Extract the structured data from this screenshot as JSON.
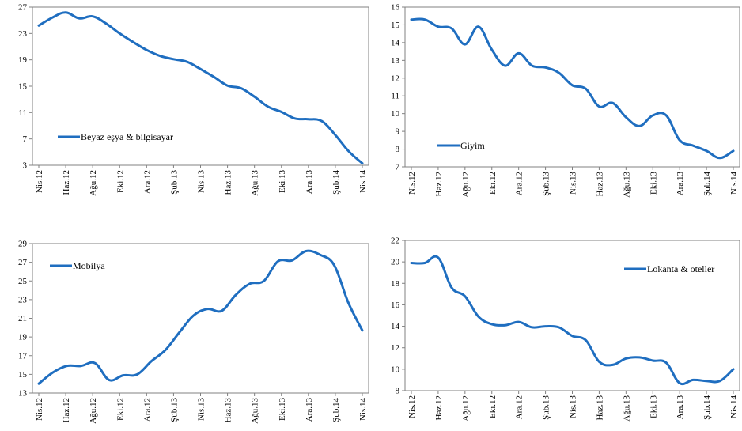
{
  "chart_data": [
    {
      "type": "line",
      "title": "",
      "xlabel": "",
      "ylabel": "",
      "x_tick_labels": [
        "Nis.12",
        "Haz.12",
        "Ağu.12",
        "Eki.12",
        "Ara.12",
        "Şub.13",
        "Nis.13",
        "Haz.13",
        "Ağu.13",
        "Eki.13",
        "Ara.13",
        "Şub.14",
        "Nis.14"
      ],
      "ylim": [
        3,
        27
      ],
      "yticks": [
        3,
        7,
        11,
        15,
        19,
        23,
        27
      ],
      "grid": false,
      "legend_position": "lower-left",
      "color": "#1F6EC0",
      "series": [
        {
          "name": "Beyaz eşya & bilgisayar",
          "values": [
            24.2,
            25.4,
            26.2,
            25.3,
            25.6,
            24.5,
            23.0,
            21.7,
            20.5,
            19.6,
            19.1,
            18.7,
            17.6,
            16.4,
            15.1,
            14.7,
            13.4,
            11.9,
            11.1,
            10.1,
            10.0,
            9.7,
            7.6,
            5.1,
            3.3
          ]
        }
      ]
    },
    {
      "type": "line",
      "title": "",
      "xlabel": "",
      "ylabel": "",
      "x_tick_labels": [
        "Nis.12",
        "Haz.12",
        "Ağu.12",
        "Eki.12",
        "Ara.12",
        "Şub.13",
        "Nis.13",
        "Haz.13",
        "Ağu.13",
        "Eki.13",
        "Ara.13",
        "Şub.14",
        "Nis.14"
      ],
      "ylim": [
        7,
        16
      ],
      "yticks": [
        7,
        8,
        9,
        10,
        11,
        12,
        13,
        14,
        15,
        16
      ],
      "grid": false,
      "legend_position": "lower-left",
      "color": "#1F6EC0",
      "series": [
        {
          "name": "Giyim",
          "values": [
            15.3,
            15.3,
            14.9,
            14.8,
            13.9,
            14.9,
            13.6,
            12.7,
            13.4,
            12.7,
            12.6,
            12.3,
            11.6,
            11.4,
            10.4,
            10.6,
            9.8,
            9.3,
            9.9,
            9.9,
            8.5,
            8.2,
            7.9,
            7.5,
            7.9
          ]
        }
      ]
    },
    {
      "type": "line",
      "title": "",
      "xlabel": "",
      "ylabel": "",
      "x_tick_labels": [
        "Nis.12",
        "Haz.12",
        "Ağu.12",
        "Eki.12",
        "Ara.12",
        "Şub.13",
        "Nis.13",
        "Haz.13",
        "Ağu.13",
        "Eki.13",
        "Ara.13",
        "Şub.14",
        "Nis.14"
      ],
      "ylim": [
        13,
        29
      ],
      "yticks": [
        13,
        15,
        17,
        19,
        21,
        23,
        25,
        27,
        29
      ],
      "grid": false,
      "legend_position": "top-left",
      "color": "#1F6EC0",
      "series": [
        {
          "name": "Mobilya",
          "values": [
            14.0,
            15.2,
            15.9,
            15.9,
            16.2,
            14.4,
            14.9,
            15.0,
            16.4,
            17.6,
            19.5,
            21.3,
            22.0,
            21.8,
            23.5,
            24.7,
            25.0,
            27.1,
            27.2,
            28.2,
            27.8,
            26.7,
            22.7,
            19.7
          ]
        }
      ]
    },
    {
      "type": "line",
      "title": "",
      "xlabel": "",
      "ylabel": "",
      "x_tick_labels": [
        "Nis.12",
        "Haz.12",
        "Ağu.12",
        "Eki.12",
        "Ara.12",
        "Şub.13",
        "Nis.13",
        "Haz.13",
        "Ağu.13",
        "Eki.13",
        "Ara.13",
        "Şub.14",
        "Nis.14"
      ],
      "ylim": [
        8,
        22
      ],
      "yticks": [
        8,
        10,
        12,
        14,
        16,
        18,
        20,
        22
      ],
      "grid": false,
      "legend_position": "top-right",
      "color": "#1F6EC0",
      "series": [
        {
          "name": "Lokanta & oteller",
          "values": [
            19.9,
            19.9,
            20.4,
            17.6,
            16.8,
            14.9,
            14.2,
            14.1,
            14.4,
            13.9,
            14.0,
            13.9,
            13.1,
            12.7,
            10.7,
            10.4,
            11.0,
            11.1,
            10.8,
            10.6,
            8.7,
            9.0,
            8.9,
            8.9,
            10.0
          ]
        }
      ]
    }
  ]
}
